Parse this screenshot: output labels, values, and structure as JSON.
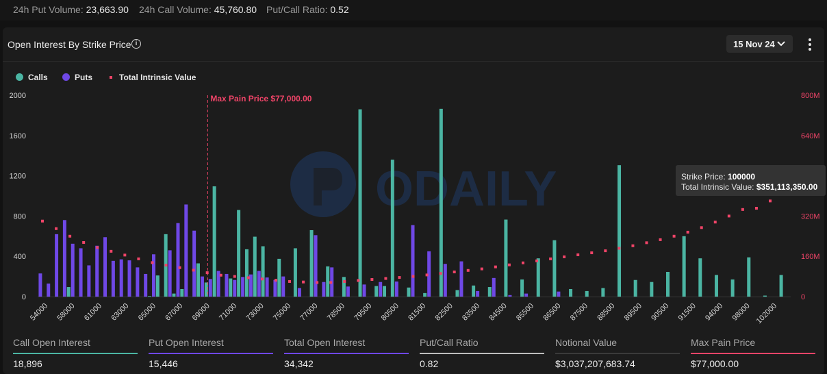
{
  "top_stats": {
    "put_volume_label": "24h Put Volume:",
    "put_volume_value": "23,663.90",
    "call_volume_label": "24h Call Volume:",
    "call_volume_value": "45,760.80",
    "ratio_label": "Put/Call Ratio:",
    "ratio_value": "0.52"
  },
  "card": {
    "title": "Open Interest By Strike Price",
    "date_selector": "15 Nov 24"
  },
  "legend": {
    "calls": "Calls",
    "puts": "Puts",
    "intrinsic": "Total Intrinsic Value"
  },
  "colors": {
    "calls": "#4bb5a3",
    "puts": "#6f48e6",
    "intrinsic": "#f04468",
    "max_pain": "#f04468"
  },
  "watermark": "ODAILY",
  "tooltip": {
    "strike_label": "Strike Price:",
    "strike_value": "100000",
    "value_label": "Total Intrinsic Value:",
    "value_value": "$351,113,350.00"
  },
  "summary": [
    {
      "label": "Call Open Interest",
      "value": "18,896",
      "color": "#4bb5a3"
    },
    {
      "label": "Put Open Interest",
      "value": "15,446",
      "color": "#6f48e6"
    },
    {
      "label": "Total Open Interest",
      "value": "34,342",
      "color": "#6f48e6"
    },
    {
      "label": "Put/Call Ratio",
      "value": "0.82",
      "color": "#bdbdbd"
    },
    {
      "label": "Notional Value",
      "value": "$3,037,207,683.74",
      "color": "#3a3a3a"
    },
    {
      "label": "Max Pain Price",
      "value": "$77,000.00",
      "color": "#f04468"
    }
  ],
  "chart_data": {
    "type": "bar",
    "y_left": {
      "ticks": [
        "0",
        "400",
        "800",
        "1200",
        "1600",
        "2000"
      ],
      "min": 0,
      "max": 2000
    },
    "y_right": {
      "ticks": [
        "0",
        "160M",
        "320M",
        "480M",
        "640M",
        "800M"
      ],
      "min": 0,
      "max": 800
    },
    "x_tick_labels": [
      "54000",
      "58000",
      "61000",
      "63000",
      "65000",
      "67000",
      "69000",
      "71000",
      "73000",
      "75000",
      "77000",
      "78500",
      "79500",
      "80500",
      "81500",
      "82500",
      "83500",
      "84500",
      "85500",
      "86500",
      "87500",
      "88500",
      "89500",
      "90500",
      "91500",
      "94000",
      "98000",
      "102000"
    ],
    "max_pain_label": "Max Pain Price $77,000.00",
    "max_pain_index": 20.5,
    "series": [
      {
        "name": "Calls",
        "values": [
          0,
          0,
          0,
          0,
          95,
          0,
          0,
          0,
          0,
          0,
          0,
          0,
          0,
          0,
          5,
          210,
          620,
          30,
          75,
          0,
          330,
          140,
          1095,
          0,
          180,
          860,
          470,
          595,
          500,
          0,
          375,
          0,
          480,
          0,
          660,
          0,
          300,
          0,
          195,
          0,
          1860,
          0,
          105,
          105,
          1360,
          0,
          90,
          0,
          35,
          0,
          1865,
          0,
          65,
          0,
          110,
          0,
          95,
          0,
          765,
          0,
          170,
          0,
          380,
          0,
          560,
          0,
          75,
          0,
          55,
          0,
          85,
          0,
          1305,
          0,
          165,
          0,
          145,
          0,
          245,
          0,
          600,
          0,
          380,
          0,
          215,
          0,
          170,
          0,
          390,
          0,
          10,
          0,
          215
        ]
      },
      {
        "name": "Puts",
        "values": [
          230,
          130,
          620,
          760,
          525,
          480,
          310,
          505,
          590,
          355,
          370,
          360,
          290,
          225,
          420,
          0,
          460,
          730,
          915,
          655,
          200,
          175,
          255,
          225,
          165,
          195,
          220,
          255,
          190,
          165,
          200,
          0,
          85,
          0,
          610,
          145,
          290,
          0,
          100,
          0,
          120,
          0,
          145,
          0,
          150,
          0,
          710,
          0,
          450,
          0,
          325,
          0,
          350,
          0,
          55,
          0,
          185,
          0,
          15,
          0,
          30,
          0,
          0,
          0,
          50,
          0,
          0,
          0,
          0,
          0,
          0,
          0,
          0,
          0,
          0,
          0,
          0,
          0,
          0,
          0,
          0,
          0,
          0,
          0,
          0,
          0,
          0,
          0,
          0,
          0,
          0,
          0,
          0
        ]
      },
      {
        "name": "Total Intrinsic Value",
        "values": [
          300,
          270,
          240,
          215,
          195,
          180,
          165,
          150,
          135,
          125,
          115,
          105,
          95,
          85,
          80,
          75,
          70,
          65,
          60,
          58,
          56,
          56,
          60,
          64,
          68,
          72,
          76,
          80,
          86,
          92,
          98,
          104,
          110,
          118,
          126,
          134,
          142,
          150,
          158,
          166,
          174,
          182,
          192,
          202,
          214,
          226,
          240,
          256,
          274,
          296,
          320,
          346,
          351,
          380
        ]
      }
    ]
  }
}
